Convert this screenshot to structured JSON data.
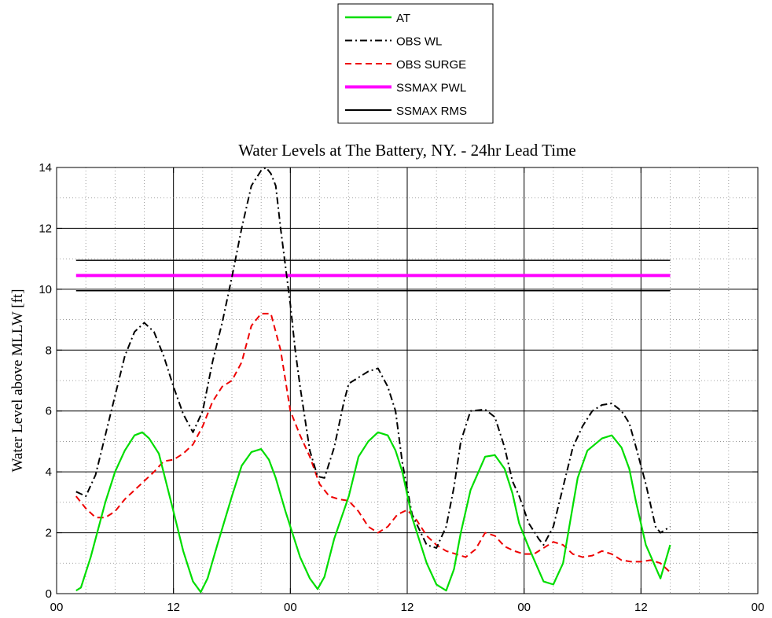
{
  "chart_data": {
    "type": "line",
    "title": "Water Levels at The Battery, NY. - 24hr Lead Time",
    "xlabel": "",
    "ylabel": "Water Level above MLLW [ft]",
    "xlim": [
      0,
      72
    ],
    "ylim": [
      0,
      14
    ],
    "x_ticks": [
      0,
      12,
      24,
      36,
      48,
      60,
      72
    ],
    "x_tick_labels": [
      "00",
      "12",
      "00",
      "12",
      "00",
      "12",
      "00"
    ],
    "y_ticks": [
      0,
      2,
      4,
      6,
      8,
      10,
      12,
      14
    ],
    "y_tick_labels": [
      "0",
      "2",
      "4",
      "6",
      "8",
      "10",
      "12",
      "14"
    ],
    "grid": true,
    "legend_position": "top-center",
    "series": [
      {
        "name": "AT",
        "color": "#00dd00",
        "style": "solid",
        "x": [
          2,
          2.5,
          3.5,
          5,
          6,
          7,
          8,
          8.8,
          9.5,
          10.5,
          12,
          13,
          14,
          14.8,
          15.5,
          16.5,
          18,
          19,
          20,
          21,
          21.8,
          22.5,
          23.5,
          24,
          25,
          26,
          26.8,
          27.5,
          28.5,
          30,
          31,
          32,
          33,
          34,
          34.8,
          35.5,
          36.5,
          38,
          39,
          40,
          40.8,
          41.5,
          42.5,
          44,
          45,
          46,
          46.8,
          47.5,
          48.5,
          50,
          51,
          52,
          52.8,
          53.5,
          54.5,
          56,
          57,
          58,
          58.8,
          59.5,
          60.5,
          62,
          63
        ],
        "y": [
          0.1,
          0.2,
          1.2,
          3.0,
          4.0,
          4.7,
          5.2,
          5.3,
          5.1,
          4.6,
          2.7,
          1.4,
          0.4,
          0.05,
          0.5,
          1.6,
          3.2,
          4.2,
          4.65,
          4.75,
          4.4,
          3.8,
          2.7,
          2.2,
          1.2,
          0.5,
          0.15,
          0.55,
          1.8,
          3.2,
          4.5,
          5.0,
          5.3,
          5.2,
          4.7,
          4.0,
          2.5,
          1.0,
          0.3,
          0.1,
          0.8,
          2.0,
          3.4,
          4.5,
          4.55,
          4.1,
          3.3,
          2.3,
          1.5,
          0.4,
          0.3,
          1.0,
          2.5,
          3.8,
          4.7,
          5.1,
          5.2,
          4.8,
          4.1,
          3.0,
          1.6,
          0.5,
          1.6
        ]
      },
      {
        "name": "OBS WL",
        "color": "#000000",
        "style": "dashdot",
        "x": [
          2,
          3,
          4,
          5,
          6,
          7,
          8,
          9,
          10,
          11,
          12,
          13,
          14,
          15,
          16,
          17,
          18,
          19,
          20,
          21,
          21.5,
          22,
          22.5,
          23,
          24,
          24.5,
          25,
          26,
          26.8,
          27.5,
          28.5,
          29.5,
          30,
          31,
          32,
          33,
          34,
          34.8,
          35.5,
          36.5,
          38,
          39,
          40,
          40.8,
          41.5,
          42.5,
          44,
          45,
          46,
          46.8,
          47.5,
          48.5,
          49.5,
          50,
          51,
          52,
          53,
          54,
          55,
          56,
          57,
          58,
          58.8,
          59.5,
          60.5,
          61.5,
          62,
          63
        ],
        "y": [
          3.35,
          3.2,
          3.9,
          5.2,
          6.5,
          7.8,
          8.6,
          8.9,
          8.6,
          7.8,
          6.8,
          5.9,
          5.3,
          6.0,
          7.6,
          8.9,
          10.4,
          12.0,
          13.4,
          13.9,
          14.0,
          13.8,
          13.4,
          12.0,
          9.5,
          8.0,
          6.8,
          4.7,
          3.85,
          3.8,
          4.8,
          6.3,
          6.9,
          7.1,
          7.3,
          7.4,
          6.8,
          6.0,
          4.3,
          2.6,
          1.6,
          1.5,
          2.2,
          3.5,
          5.0,
          6.0,
          6.05,
          5.8,
          4.8,
          3.7,
          3.2,
          2.3,
          1.8,
          1.6,
          2.2,
          3.5,
          4.8,
          5.5,
          6.0,
          6.2,
          6.25,
          6.0,
          5.6,
          4.8,
          3.6,
          2.2,
          2.0,
          2.2
        ]
      },
      {
        "name": "OBS SURGE",
        "color": "#ee0000",
        "style": "dashed",
        "x": [
          2,
          3,
          4,
          5,
          6,
          7,
          8,
          9,
          10,
          11,
          12,
          13,
          14,
          15,
          16,
          17,
          18,
          19,
          20,
          21,
          22,
          23,
          24,
          25,
          26,
          27,
          28,
          29,
          30,
          31,
          32,
          33,
          34,
          35,
          36,
          37,
          38,
          39,
          40,
          41,
          42,
          43,
          44,
          45,
          46,
          47,
          48,
          49,
          50,
          51,
          52,
          53,
          54,
          55,
          56,
          57,
          58,
          59,
          60,
          61,
          62,
          63
        ],
        "y": [
          3.2,
          2.8,
          2.5,
          2.5,
          2.7,
          3.1,
          3.4,
          3.7,
          4.0,
          4.35,
          4.4,
          4.6,
          4.9,
          5.5,
          6.3,
          6.8,
          7.0,
          7.6,
          8.8,
          9.2,
          9.2,
          8.0,
          6.0,
          5.2,
          4.5,
          3.6,
          3.2,
          3.1,
          3.05,
          2.7,
          2.2,
          2.0,
          2.2,
          2.6,
          2.75,
          2.4,
          1.9,
          1.6,
          1.4,
          1.3,
          1.2,
          1.45,
          2.0,
          1.9,
          1.55,
          1.4,
          1.3,
          1.3,
          1.5,
          1.7,
          1.6,
          1.3,
          1.2,
          1.25,
          1.4,
          1.3,
          1.1,
          1.05,
          1.05,
          1.1,
          1.0,
          0.7
        ]
      },
      {
        "name": "SSMAX PWL",
        "color": "#ff00ff",
        "style": "solid-thick",
        "x": [
          2,
          63
        ],
        "y": [
          10.45,
          10.45
        ]
      },
      {
        "name": "SSMAX RMS",
        "color": "#000000",
        "style": "solid",
        "x": [
          2,
          63
        ],
        "y": [
          10.95,
          10.95
        ],
        "y_lower": [
          9.95,
          9.95
        ]
      }
    ]
  }
}
